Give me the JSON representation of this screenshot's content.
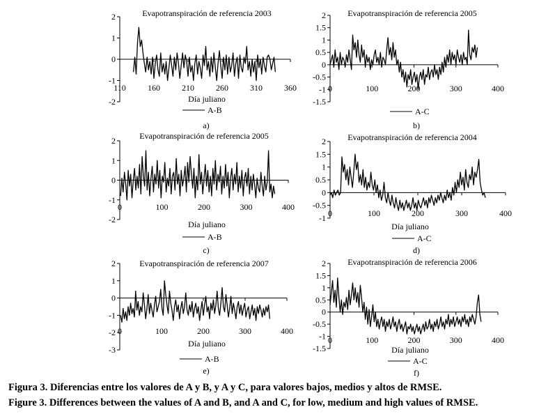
{
  "figure": {
    "caption_es": "Figura 3. Diferencias entre los valores de A y B, y A y C, para valores bajos, medios y altos de RMSE.",
    "caption_en": "Figure 3. Differences between the values of A and B, and A and C, for low, medium and high values of RMSE."
  },
  "chart_data": [
    {
      "id": "a",
      "type": "line",
      "title": "Evapotranspiración de referencia 2003",
      "xlabel": "Día juliano",
      "ylabel": "",
      "xlim": [
        110,
        360
      ],
      "ylim": [
        -2,
        2
      ],
      "xticks": [
        110,
        160,
        210,
        260,
        310,
        360
      ],
      "yticks": [
        -2,
        -1,
        0,
        1,
        2
      ],
      "legend": "A-B",
      "panel_label": "a)",
      "series": [
        {
          "name": "A-B",
          "x_start": 130,
          "x_step": 2,
          "values": [
            -0.6,
            0.1,
            -0.7,
            0.8,
            1.5,
            0.6,
            0.9,
            0.3,
            -0.2,
            -0.6,
            0.1,
            -0.5,
            -0.1,
            -0.7,
            0.1,
            -0.9,
            -0.2,
            0.2,
            -0.5,
            -0.8,
            0.3,
            -0.6,
            -0.2,
            -0.7,
            -0.1,
            -1.0,
            -0.4,
            0.2,
            -0.3,
            -0.8,
            0.1,
            -0.5,
            0.3,
            -0.2,
            -0.9,
            -0.3,
            0.3,
            -0.4,
            0.2,
            -0.1,
            -0.8,
            0.1,
            -0.6,
            -0.3,
            -1.0,
            -0.2,
            0.2,
            -0.7,
            -0.1,
            -0.4,
            -0.9,
            0.2,
            -0.3,
            0.6,
            -0.5,
            -0.1,
            -0.8,
            0.1,
            -0.6,
            0.3,
            -0.4,
            -1.0,
            -0.2,
            0.4,
            -0.3,
            -0.9,
            0.1,
            -0.5,
            0.2,
            -0.7,
            0.1,
            -0.6,
            -0.3,
            0.3,
            -0.8,
            -0.2,
            0.1,
            -0.9,
            0.2,
            -0.4,
            -0.6,
            0.1,
            -0.2,
            0.6,
            -0.5,
            -0.1,
            -0.8,
            0.0,
            -0.6,
            -0.1,
            -1.0,
            0.2,
            -0.4,
            0.0,
            -0.7,
            0.1,
            -0.3,
            -0.6,
            0.1,
            0.2,
            0.0,
            -0.5,
            -0.2,
            0.1,
            -0.6
          ]
        }
      ]
    },
    {
      "id": "b",
      "type": "line",
      "title": "Evapotranspiración de referencia 2005",
      "xlabel": "",
      "ylabel": "",
      "xlim": [
        0,
        400
      ],
      "ylim": [
        -1.5,
        2
      ],
      "xticks": [
        0,
        100,
        200,
        300,
        400
      ],
      "yticks": [
        -1.5,
        -1,
        -0.5,
        0,
        0.5,
        1,
        1.5,
        2
      ],
      "legend": "A-C",
      "panel_label": "b)",
      "series": [
        {
          "name": "A-C",
          "x_start": 0,
          "x_step": 3,
          "values": [
            0.0,
            0.2,
            0.4,
            -0.1,
            0.6,
            0.1,
            0.3,
            -0.2,
            0.5,
            0.0,
            0.3,
            0.2,
            -0.1,
            0.4,
            0.1,
            0.6,
            0.2,
            -0.2,
            1.2,
            0.6,
            0.9,
            0.3,
            1.0,
            0.4,
            0.1,
            0.8,
            0.3,
            0.6,
            -0.1,
            0.4,
            0.1,
            0.3,
            -0.2,
            0.2,
            0.0,
            0.4,
            0.6,
            0.1,
            0.3,
            0.0,
            0.5,
            -0.1,
            0.3,
            0.2,
            0.0,
            0.6,
            1.1,
            0.4,
            0.7,
            0.2,
            0.9,
            0.3,
            0.6,
            0.0,
            0.2,
            -0.3,
            0.1,
            -0.5,
            -0.2,
            -0.7,
            -0.3,
            -0.9,
            -0.4,
            -0.6,
            -0.2,
            -0.8,
            -0.5,
            -0.3,
            -0.7,
            -0.4,
            -1.0,
            -0.5,
            -0.3,
            -0.6,
            -0.2,
            -0.8,
            -0.4,
            -0.5,
            -0.1,
            -0.6,
            -0.3,
            -0.2,
            -0.5,
            0.0,
            -0.4,
            -0.2,
            -0.6,
            -0.1,
            -0.4,
            0.1,
            -0.3,
            0.3,
            -0.1,
            0.4,
            0.1,
            0.6,
            0.0,
            0.5,
            0.2,
            0.4,
            0.0,
            0.6,
            0.3,
            0.1,
            0.4,
            0.0,
            0.5,
            0.2,
            0.3,
            0.0,
            1.4,
            0.4,
            0.2,
            0.7,
            0.5,
            0.8,
            0.3,
            0.7
          ]
        }
      ]
    },
    {
      "id": "c",
      "type": "line",
      "title": "Evapotranspiración de referencia 2005",
      "xlabel": "Día juliano",
      "ylabel": "",
      "xlim": [
        0,
        400
      ],
      "ylim": [
        -2,
        2
      ],
      "xticks": [
        0,
        100,
        200,
        300,
        400
      ],
      "yticks": [
        -2,
        -1,
        0,
        1,
        2
      ],
      "legend": "A-B",
      "panel_label": "c)",
      "series": [
        {
          "name": "A-B",
          "x_start": 2,
          "x_step": 3,
          "values": [
            -0.8,
            0.1,
            -0.6,
            0.4,
            -0.2,
            -1.0,
            0.5,
            -0.3,
            0.3,
            -0.9,
            0.0,
            0.6,
            -0.5,
            0.2,
            -0.4,
            0.8,
            -0.7,
            1.2,
            0.2,
            -0.3,
            1.5,
            -0.5,
            0.4,
            -0.8,
            0.1,
            0.7,
            -0.6,
            0.3,
            -0.2,
            1.0,
            -0.4,
            0.5,
            -0.9,
            0.2,
            -0.1,
            0.9,
            -0.6,
            0.1,
            -0.3,
            0.6,
            -0.7,
            0.2,
            0.4,
            -0.5,
            1.1,
            -0.2,
            0.3,
            -0.8,
            0.5,
            -0.3,
            0.1,
            0.7,
            -0.6,
            0.9,
            -0.1,
            1.2,
            0.3,
            -0.4,
            0.6,
            -0.9,
            0.2,
            -0.5,
            1.3,
            -0.2,
            0.4,
            -0.7,
            0.1,
            0.8,
            -0.3,
            0.5,
            -0.6,
            0.2,
            -0.8,
            0.6,
            -0.2,
            1.0,
            -0.5,
            0.3,
            -0.1,
            0.7,
            -0.7,
            0.2,
            -0.4,
            0.8,
            -0.3,
            0.4,
            -0.9,
            0.1,
            0.6,
            -0.5,
            0.3,
            -0.2,
            0.9,
            -0.6,
            0.2,
            -0.4,
            0.5,
            -0.8,
            0.1,
            0.4,
            -0.3,
            0.6,
            -0.7,
            0.2,
            -0.5,
            0.3,
            -0.2,
            -0.9,
            0.1,
            -0.4,
            -0.6,
            0.4,
            -0.3,
            -0.8,
            0.2,
            -0.5,
            -0.1,
            1.5,
            -0.6,
            -0.2,
            -0.9,
            -0.3,
            -0.7
          ]
        }
      ]
    },
    {
      "id": "d",
      "type": "line",
      "title": "Evapotranspiración de referencia 2004",
      "xlabel": "Día juliano",
      "ylabel": "",
      "xlim": [
        0,
        400
      ],
      "ylim": [
        -1,
        2
      ],
      "xticks": [
        0,
        100,
        200,
        300,
        400
      ],
      "yticks": [
        -1,
        -0.5,
        0,
        0.5,
        1,
        1.5,
        2
      ],
      "legend": "A-C",
      "panel_label": "d)",
      "series": [
        {
          "name": "A-C",
          "x_start": 0,
          "x_step": 3,
          "values": [
            -0.1,
            0.0,
            -0.2,
            0.1,
            -0.1,
            0.0,
            0.1,
            -0.1,
            0.0,
            1.4,
            0.8,
            1.1,
            0.5,
            0.9,
            0.3,
            1.0,
            0.6,
            0.2,
            0.8,
            1.5,
            0.9,
            1.2,
            0.4,
            0.7,
            0.3,
            0.9,
            0.2,
            0.6,
            0.1,
            0.4,
            0.2,
            0.8,
            0.3,
            0.1,
            0.5,
            0.0,
            0.3,
            -0.2,
            0.1,
            -0.3,
            -0.1,
            0.4,
            -0.2,
            -0.4,
            0.0,
            -0.3,
            -0.5,
            -0.1,
            -0.4,
            -0.6,
            -0.2,
            -0.5,
            -0.7,
            -0.3,
            -0.6,
            -0.4,
            -0.7,
            -0.5,
            -0.3,
            -0.6,
            -0.4,
            -0.7,
            -0.5,
            -0.2,
            -0.6,
            -0.4,
            -0.7,
            -0.3,
            -0.5,
            -0.6,
            -0.4,
            -0.2,
            -0.5,
            -0.3,
            -0.6,
            -0.2,
            -0.4,
            -0.1,
            -0.3,
            -0.5,
            -0.2,
            -0.4,
            -0.1,
            -0.3,
            0.0,
            -0.2,
            -0.4,
            -0.1,
            -0.3,
            0.1,
            -0.2,
            0.0,
            -0.3,
            0.2,
            -0.1,
            0.4,
            0.0,
            0.5,
            0.2,
            0.8,
            0.3,
            0.6,
            0.1,
            0.9,
            0.4,
            0.2,
            0.7,
            0.5,
            1.0,
            0.3,
            0.8,
            0.6,
            0.9,
            1.3,
            0.4,
            0.1,
            -0.1,
            0.0,
            -0.2
          ]
        }
      ]
    },
    {
      "id": "e",
      "type": "line",
      "title": "Evapotranspiración de referencia 2007",
      "xlabel": "Día juliano",
      "ylabel": "",
      "xlim": [
        0,
        400
      ],
      "ylim": [
        -3,
        2
      ],
      "xticks": [
        0,
        100,
        200,
        300,
        400
      ],
      "yticks": [
        -3,
        -2,
        -1,
        0,
        1,
        2
      ],
      "legend": "A-B",
      "panel_label": "e)",
      "series": [
        {
          "name": "A-B",
          "x_start": 2,
          "x_step": 3,
          "values": [
            -1.0,
            -1.4,
            -0.6,
            -1.2,
            -0.8,
            -1.3,
            -0.5,
            -1.0,
            -0.3,
            -0.9,
            -0.6,
            -1.1,
            0.4,
            -0.7,
            -0.2,
            -1.0,
            -0.5,
            -0.8,
            0.3,
            -0.4,
            -1.2,
            -0.6,
            0.2,
            -0.9,
            -0.3,
            -0.7,
            -1.1,
            -0.4,
            0.1,
            -0.8,
            -0.5,
            -0.2,
            0.5,
            -0.6,
            -1.0,
            1.0,
            0.2,
            -0.4,
            -0.9,
            0.4,
            -0.3,
            -0.7,
            -1.3,
            -0.5,
            -0.1,
            -0.8,
            -0.4,
            -1.2,
            -0.6,
            -0.2,
            -0.9,
            -0.5,
            0.3,
            -0.7,
            -1.0,
            -0.4,
            -0.8,
            -0.2,
            -1.1,
            -0.6,
            -0.3,
            -0.9,
            -0.5,
            -1.3,
            -0.7,
            -0.2,
            -1.0,
            -0.4,
            0.1,
            -0.8,
            -0.5,
            -1.2,
            -0.3,
            -0.7,
            -0.1,
            -0.9,
            -0.4,
            0.4,
            -0.6,
            -1.0,
            -0.3,
            0.6,
            -0.5,
            -0.8,
            0.2,
            -0.4,
            -1.1,
            -0.6,
            0.1,
            -0.9,
            -0.3,
            -0.7,
            -1.2,
            -0.5,
            -0.2,
            -0.9,
            -0.4,
            -1.0,
            -0.6,
            -0.3,
            -1.1,
            -0.7,
            -0.5,
            -1.2,
            -0.8,
            -0.4,
            -1.0,
            -0.6,
            -1.3,
            -0.5,
            -0.9,
            -0.4,
            -0.7,
            -1.1,
            -0.6,
            -1.0,
            -0.5,
            -0.8,
            -0.4,
            -1.2
          ]
        }
      ]
    },
    {
      "id": "f",
      "type": "line",
      "title": "Evapotranspiración de referencia 2006",
      "xlabel": "Día juliano",
      "ylabel": "",
      "xlim": [
        0,
        400
      ],
      "ylim": [
        -1.5,
        2
      ],
      "xticks": [
        0,
        100,
        200,
        300,
        400
      ],
      "yticks": [
        -1.5,
        -1,
        -0.5,
        0,
        0.5,
        1,
        1.5,
        2
      ],
      "legend": "A-C",
      "panel_label": "f)",
      "series": [
        {
          "name": "A-C",
          "x_start": 0,
          "x_step": 3,
          "values": [
            0.3,
            0.8,
            1.3,
            0.4,
            0.9,
            0.2,
            1.4,
            0.6,
            0.0,
            0.5,
            -0.1,
            0.4,
            0.2,
            0.6,
            0.1,
            0.9,
            0.3,
            0.7,
            1.2,
            0.5,
            1.0,
            0.4,
            0.8,
            0.2,
            1.1,
            0.6,
            0.0,
            0.4,
            -0.3,
            0.2,
            -0.5,
            0.1,
            -0.6,
            -0.2,
            0.3,
            -0.4,
            0.0,
            -0.6,
            -0.3,
            -0.7,
            -0.4,
            -0.2,
            -0.6,
            -0.3,
            -0.8,
            -0.4,
            -0.6,
            -0.3,
            -0.7,
            -0.5,
            -0.2,
            -0.6,
            -0.4,
            -0.8,
            -0.5,
            -0.3,
            -0.7,
            -0.5,
            -0.8,
            -0.6,
            -0.4,
            -0.9,
            -0.6,
            -0.7,
            -0.5,
            -0.8,
            -0.6,
            -0.9,
            -0.7,
            -0.5,
            -0.8,
            -0.6,
            -0.9,
            -0.7,
            -0.5,
            -0.8,
            -0.4,
            -0.7,
            -0.6,
            -0.3,
            -0.7,
            -0.5,
            -0.8,
            -0.4,
            -0.6,
            -0.3,
            -0.7,
            -0.5,
            -0.2,
            -0.6,
            -0.4,
            -0.7,
            -0.3,
            -0.5,
            -0.1,
            -0.6,
            -0.3,
            -0.5,
            -0.2,
            -0.6,
            -0.4,
            -0.2,
            -0.5,
            -0.3,
            -0.6,
            -0.2,
            -0.4,
            -0.1,
            -0.5,
            -0.3,
            -0.6,
            -0.2,
            -0.4,
            -0.1,
            -0.3,
            -0.5,
            -0.2,
            0.4,
            0.7,
            -0.1,
            -0.4
          ]
        }
      ]
    }
  ]
}
